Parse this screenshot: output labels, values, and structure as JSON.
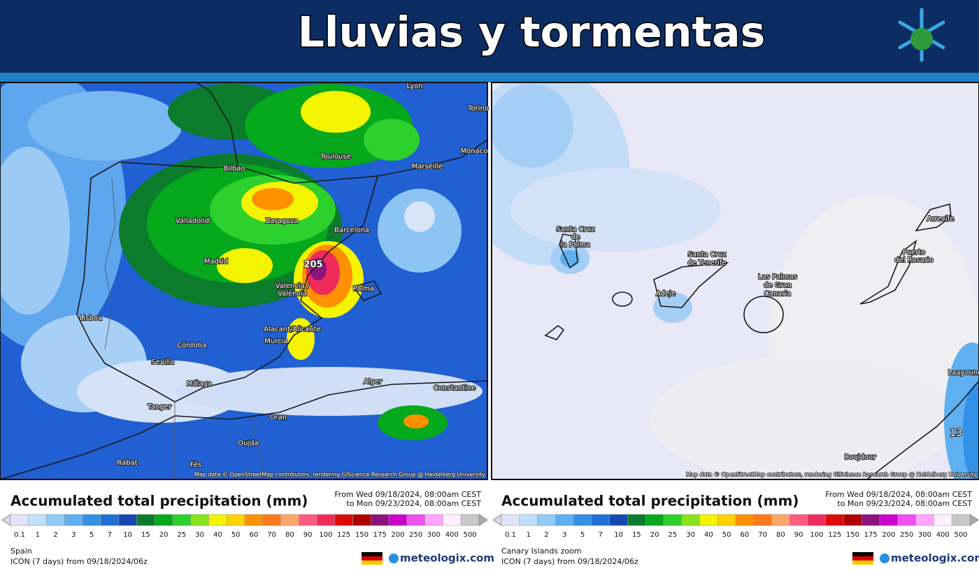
{
  "header": {
    "title": "Lluvias y tormentas"
  },
  "panels": [
    {
      "map": {
        "labels": [
          "Lyon",
          "Torino",
          "Monaco",
          "Toulouse",
          "Marseille",
          "Bilbao",
          "Zaragoza",
          "Valladolid",
          "Barcelona",
          "Madrid",
          "205",
          "Valencia /",
          "València",
          "Palma",
          "Lisboa",
          "Alacant/Alicante",
          "Córdoba",
          "Murcia",
          "Sevilla",
          "Málaga",
          "Alger",
          "Constantine",
          "Tanger",
          "Oran",
          "Oujda",
          "Rabat",
          "Fès"
        ],
        "attribution": "Map data © OpenStreetMap contributors, rendering GIScience Research Group @ Heidelberg University"
      },
      "legend": {
        "title": "Accumulated total precipitation (mm)",
        "period_from": "From Wed 09/18/2024, 08:00am CEST",
        "period_to": "to Mon 09/23/2024, 08:00am CEST",
        "region": "Spain",
        "model": "ICON (7 days)  from  09/18/2024/06z",
        "brand": "meteologix.com"
      }
    },
    {
      "map": {
        "labels": [
          "Santa Cruz",
          "de",
          "la Palma",
          "Santa Cruz",
          "de Tenerife",
          "Adeje",
          "Las Palmas",
          "de Gran",
          "Canaria",
          "Puerto",
          "del Rosario",
          "Arrecife",
          "Laayoune",
          "Boujdour",
          "13"
        ],
        "attribution": "Map data © OpenStreetMap contributors, rendering GIScience Research Group @ Heidelberg University"
      },
      "legend": {
        "title": "Accumulated total precipitation (mm)",
        "period_from": "From Wed 09/18/2024, 08:00am CEST",
        "period_to": "to Mon 09/23/2024, 08:00am CEST",
        "region": "Canary Islands zoom",
        "model": "ICON (7 days)  from  09/18/2024/06z",
        "brand": "meteologix.com"
      }
    }
  ],
  "legend_scale": {
    "levels": [
      0.1,
      1,
      2,
      3,
      5,
      7,
      10,
      15,
      20,
      25,
      30,
      40,
      50,
      60,
      70,
      80,
      90,
      100,
      125,
      150,
      175,
      200,
      250,
      300,
      400,
      500
    ],
    "colors": [
      "#e4e4f8",
      "#bfe0fb",
      "#90caf6",
      "#5eb0f0",
      "#3290e6",
      "#2070d8",
      "#1548b4",
      "#0b7c2c",
      "#06a81c",
      "#2ed02e",
      "#8ae21e",
      "#f4f400",
      "#ffd200",
      "#ff9000",
      "#ff7a1a",
      "#ffa668",
      "#ff5a80",
      "#f02a5a",
      "#dc0a0a",
      "#b00000",
      "#8c147c",
      "#cc00cc",
      "#f050f0",
      "#ffa4ff",
      "#fff0ff",
      "#c8c8c8"
    ]
  }
}
